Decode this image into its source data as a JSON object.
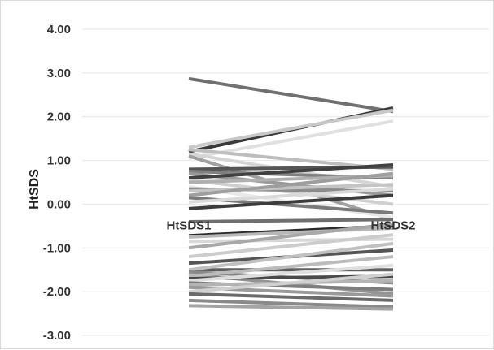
{
  "chart_data": {
    "type": "line",
    "categories": [
      "HtSDS1",
      "HtSDS2"
    ],
    "ylabel": "HtSDS",
    "xlabel": "",
    "ylim": [
      -3,
      4
    ],
    "yticks": [
      "4.00",
      "3.00",
      "2.00",
      "1.00",
      "0.00",
      "-1.00",
      "-2.00",
      "-3.00"
    ],
    "grid": true,
    "legend": "none",
    "series": [
      {
        "values": [
          2.87,
          2.12
        ],
        "color": "#707070"
      },
      {
        "values": [
          1.2,
          2.2
        ],
        "color": "#3a3a3a"
      },
      {
        "values": [
          1.3,
          2.15
        ],
        "color": "#c8c8c8"
      },
      {
        "values": [
          1.05,
          1.9
        ],
        "color": "#e0e0e0"
      },
      {
        "values": [
          1.25,
          0.8
        ],
        "color": "#bdbdbd"
      },
      {
        "values": [
          1.15,
          0.4
        ],
        "color": "#d5d5d5"
      },
      {
        "values": [
          1.1,
          -0.35
        ],
        "color": "#a0a0a0"
      },
      {
        "values": [
          0.8,
          0.85
        ],
        "color": "#555555"
      },
      {
        "values": [
          0.75,
          0.6
        ],
        "color": "#808080"
      },
      {
        "values": [
          0.7,
          0.2
        ],
        "color": "#999999"
      },
      {
        "values": [
          0.6,
          0.9
        ],
        "color": "#404040"
      },
      {
        "values": [
          0.55,
          0.0
        ],
        "color": "#cfcfcf"
      },
      {
        "values": [
          0.5,
          0.65
        ],
        "color": "#b0b0b0"
      },
      {
        "values": [
          0.4,
          -0.3
        ],
        "color": "#e8e8e8"
      },
      {
        "values": [
          0.35,
          0.3
        ],
        "color": "#8c8c8c"
      },
      {
        "values": [
          0.3,
          0.45
        ],
        "color": "#c4c4c4"
      },
      {
        "values": [
          0.2,
          0.7
        ],
        "color": "#9e9e9e"
      },
      {
        "values": [
          0.15,
          -0.2
        ],
        "color": "#7a7a7a"
      },
      {
        "values": [
          0.05,
          0.35
        ],
        "color": "#dadada"
      },
      {
        "values": [
          -0.1,
          0.2
        ],
        "color": "#3c3c3c"
      },
      {
        "values": [
          -0.4,
          -0.35
        ],
        "color": "#6e6e6e"
      },
      {
        "values": [
          -0.72,
          -0.5
        ],
        "color": "#2a2a2a"
      },
      {
        "values": [
          -0.75,
          -0.55
        ],
        "color": "#b8b8b8"
      },
      {
        "values": [
          -0.85,
          -0.8
        ],
        "color": "#d8d8d8"
      },
      {
        "values": [
          -1.0,
          -0.45
        ],
        "color": "#a8a8a8"
      },
      {
        "values": [
          -1.2,
          -0.7
        ],
        "color": "#cccccc"
      },
      {
        "values": [
          -1.35,
          -1.05
        ],
        "color": "#555555"
      },
      {
        "values": [
          -1.5,
          -1.5
        ],
        "color": "#606060"
      },
      {
        "values": [
          -1.5,
          -0.9
        ],
        "color": "#c0c0c0"
      },
      {
        "values": [
          -1.55,
          -1.8
        ],
        "color": "#888888"
      },
      {
        "values": [
          -1.6,
          -2.05
        ],
        "color": "#949494"
      },
      {
        "values": [
          -1.65,
          -1.2
        ],
        "color": "#bcbcbc"
      },
      {
        "values": [
          -1.7,
          -1.65
        ],
        "color": "#4a4a4a"
      },
      {
        "values": [
          -1.75,
          -1.4
        ],
        "color": "#dedede"
      },
      {
        "values": [
          -1.8,
          -1.95
        ],
        "color": "#7d7d7d"
      },
      {
        "values": [
          -1.85,
          -1.75
        ],
        "color": "#b4b4b4"
      },
      {
        "values": [
          -1.9,
          -2.1
        ],
        "color": "#9a9a9a"
      },
      {
        "values": [
          -2.0,
          -1.6
        ],
        "color": "#d0d0d0"
      },
      {
        "values": [
          -2.05,
          -2.2
        ],
        "color": "#6a6a6a"
      },
      {
        "values": [
          -2.2,
          -2.35
        ],
        "color": "#8a8a8a"
      },
      {
        "values": [
          -2.32,
          -2.4
        ],
        "color": "#a4a4a4"
      }
    ]
  }
}
